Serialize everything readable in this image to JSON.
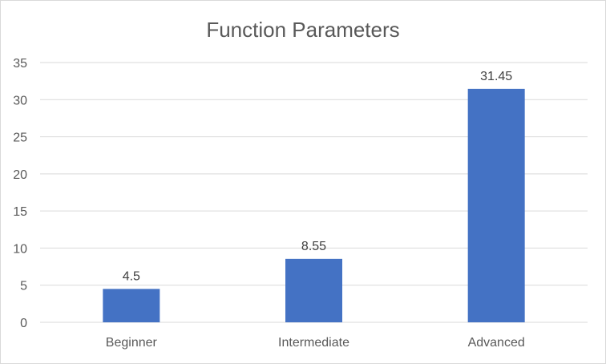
{
  "chart_data": {
    "type": "bar",
    "title": "Function Parameters",
    "xlabel": "",
    "ylabel": "",
    "categories": [
      "Beginner",
      "Intermediate",
      "Advanced"
    ],
    "values": [
      4.5,
      8.55,
      31.45
    ],
    "data_labels": [
      "4.5",
      "8.55",
      "31.45"
    ],
    "ylim": [
      0,
      35
    ],
    "yticks": [
      0,
      5,
      10,
      15,
      20,
      25,
      30,
      35
    ],
    "grid": true,
    "legend": "none",
    "bar_color": "#4472c4",
    "gridline_color": "#d9d9d9",
    "text_color": "#595959"
  }
}
